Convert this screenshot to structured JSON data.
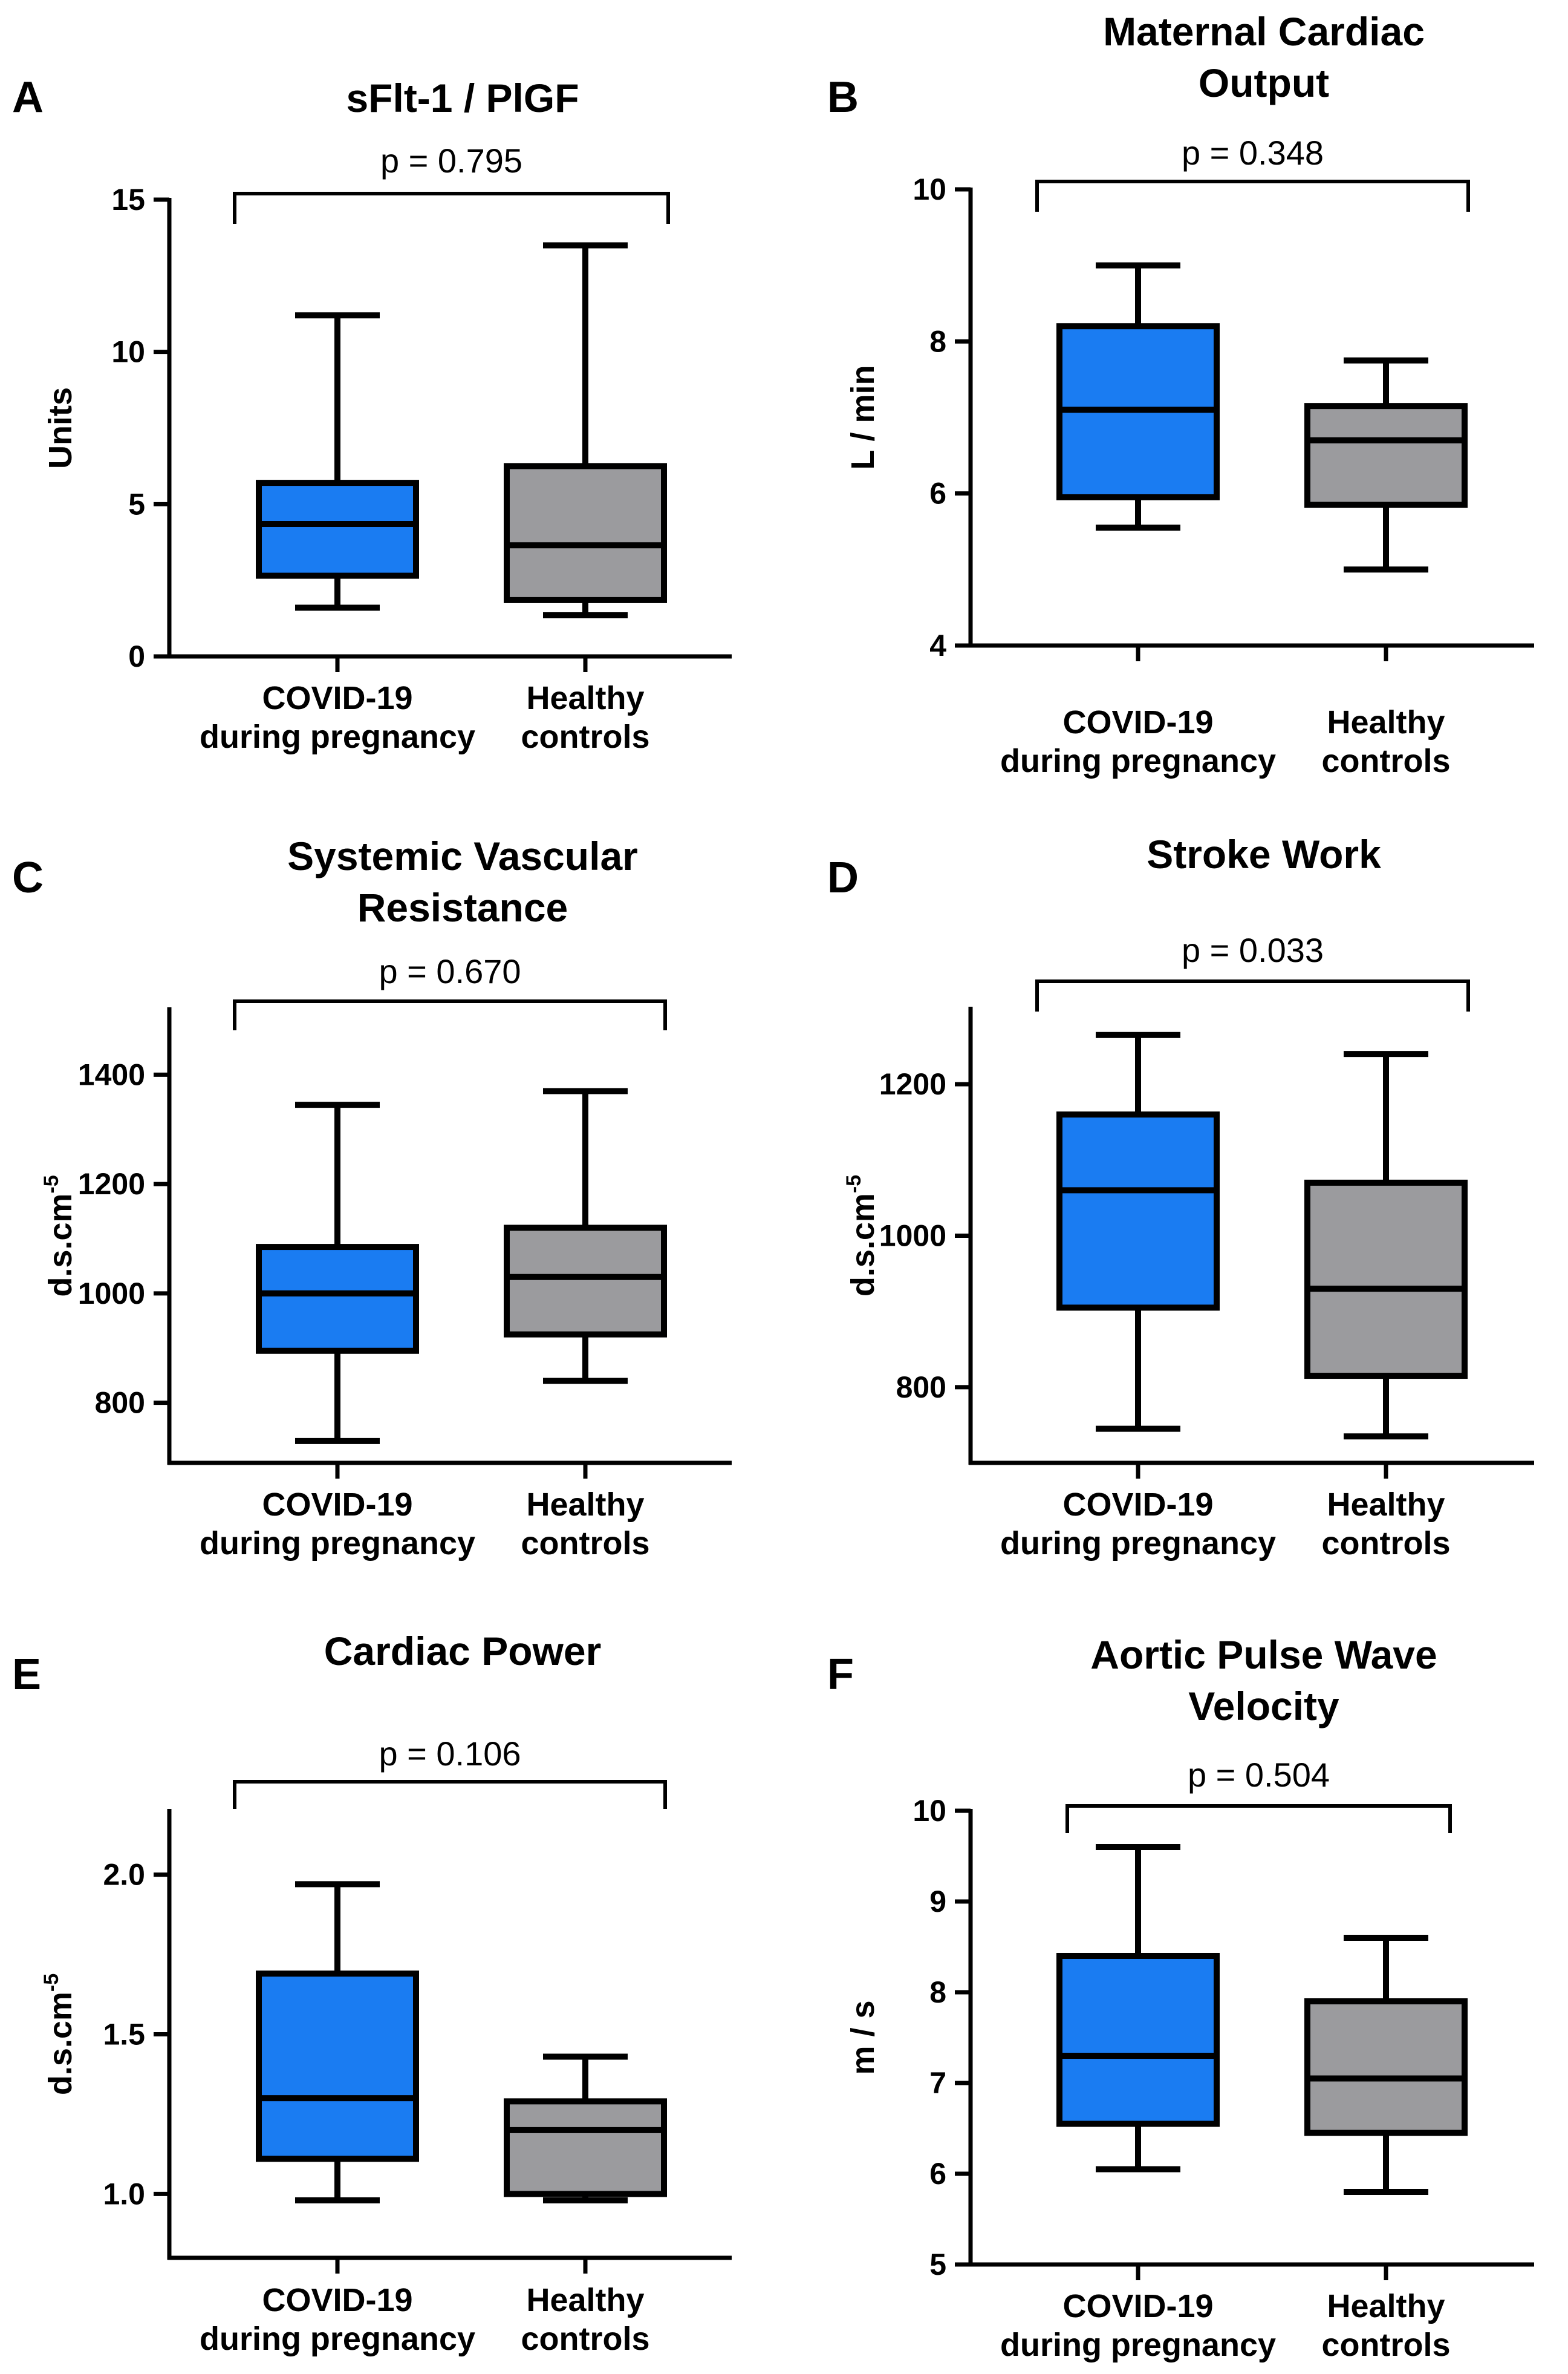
{
  "colors": {
    "covid": "#1a7cf2",
    "healthy": "#9b9b9e",
    "ink": "#000000"
  },
  "chart_data": [
    {
      "type": "box",
      "panel": "A",
      "title": [
        "sFlt-1 / PlGF"
      ],
      "ylabel": [
        "Units"
      ],
      "ylim": [
        0,
        15
      ],
      "yticks": [
        0,
        5,
        10,
        15
      ],
      "ytick_labels": [
        "0",
        "5",
        "10",
        "15"
      ],
      "categories": [
        [
          "COVID-19",
          "during pregnancy"
        ],
        [
          "Healthy",
          "controls"
        ]
      ],
      "p_value": "p = 0.795",
      "series": [
        {
          "name": "COVID-19 during pregnancy",
          "color_key": "covid",
          "min": 1.6,
          "q1": 2.65,
          "median": 4.35,
          "q3": 5.7,
          "max": 11.2
        },
        {
          "name": "Healthy controls",
          "color_key": "healthy",
          "min": 1.35,
          "q1": 1.85,
          "median": 3.65,
          "q3": 6.25,
          "max": 13.5
        }
      ]
    },
    {
      "type": "box",
      "panel": "B",
      "title": [
        "Maternal Cardiac",
        "Output"
      ],
      "ylabel": [
        "L / min"
      ],
      "ylim": [
        4,
        10
      ],
      "yticks": [
        4,
        6,
        8,
        10
      ],
      "ytick_labels": [
        "4",
        "6",
        "8",
        "10"
      ],
      "categories": [
        [
          "COVID-19",
          "during pregnancy"
        ],
        [
          "Healthy",
          "controls"
        ]
      ],
      "p_value": "p = 0.348",
      "series": [
        {
          "name": "COVID-19 during pregnancy",
          "color_key": "covid",
          "min": 5.55,
          "q1": 5.95,
          "median": 7.1,
          "q3": 8.2,
          "max": 9.0
        },
        {
          "name": "Healthy controls",
          "color_key": "healthy",
          "min": 5.0,
          "q1": 5.85,
          "median": 6.7,
          "q3": 7.15,
          "max": 7.75
        }
      ]
    },
    {
      "type": "box",
      "panel": "C",
      "title": [
        "Systemic Vascular",
        "Resistance"
      ],
      "ylabel": [
        "d.s.cm",
        "-5"
      ],
      "ylim": [
        690,
        1520
      ],
      "yticks": [
        800,
        1000,
        1200,
        1400
      ],
      "ytick_labels": [
        "800",
        "1000",
        "1200",
        "1400"
      ],
      "categories": [
        [
          "COVID-19",
          "during pregnancy"
        ],
        [
          "Healthy",
          "controls"
        ]
      ],
      "p_value": "p = 0.670",
      "series": [
        {
          "name": "COVID-19 during pregnancy",
          "color_key": "covid",
          "min": 730,
          "q1": 895,
          "median": 1000,
          "q3": 1085,
          "max": 1345
        },
        {
          "name": "Healthy controls",
          "color_key": "healthy",
          "min": 840,
          "q1": 925,
          "median": 1030,
          "q3": 1120,
          "max": 1370
        }
      ]
    },
    {
      "type": "box",
      "panel": "D",
      "title": [
        "Stroke Work"
      ],
      "ylabel": [
        "d.s.cm",
        "-5"
      ],
      "ylim": [
        700,
        1300
      ],
      "yticks": [
        800,
        1000,
        1200
      ],
      "ytick_labels": [
        "800",
        "1000",
        "1200"
      ],
      "categories": [
        [
          "COVID-19",
          "during pregnancy"
        ],
        [
          "Healthy",
          "controls"
        ]
      ],
      "p_value": "p = 0.033",
      "series": [
        {
          "name": "COVID-19 during pregnancy",
          "color_key": "covid",
          "min": 745,
          "q1": 905,
          "median": 1060,
          "q3": 1160,
          "max": 1265
        },
        {
          "name": "Healthy controls",
          "color_key": "healthy",
          "min": 735,
          "q1": 815,
          "median": 930,
          "q3": 1070,
          "max": 1240
        }
      ]
    },
    {
      "type": "box",
      "panel": "E",
      "title": [
        "Cardiac Power"
      ],
      "ylabel": [
        "d.s.cm",
        "-5"
      ],
      "ylim": [
        0.8,
        2.2
      ],
      "yticks": [
        1.0,
        1.5,
        2.0
      ],
      "ytick_labels": [
        "1.0",
        "1.5",
        "2.0"
      ],
      "categories": [
        [
          "COVID-19",
          "during pregnancy"
        ],
        [
          "Healthy",
          "controls"
        ]
      ],
      "p_value": "p = 0.106",
      "series": [
        {
          "name": "COVID-19 during pregnancy",
          "color_key": "covid",
          "min": 0.98,
          "q1": 1.11,
          "median": 1.3,
          "q3": 1.69,
          "max": 1.97
        },
        {
          "name": "Healthy controls",
          "color_key": "healthy",
          "min": 0.98,
          "q1": 1.0,
          "median": 1.2,
          "q3": 1.29,
          "max": 1.43
        }
      ]
    },
    {
      "type": "box",
      "panel": "F",
      "title": [
        "Aortic Pulse Wave",
        "Velocity"
      ],
      "ylabel": [
        "m / s"
      ],
      "ylim": [
        5,
        10
      ],
      "yticks": [
        5,
        6,
        7,
        8,
        9,
        10
      ],
      "ytick_labels": [
        "5",
        "6",
        "7",
        "8",
        "9",
        "10"
      ],
      "categories": [
        [
          "COVID-19",
          "during pregnancy"
        ],
        [
          "Healthy",
          "controls"
        ]
      ],
      "p_value": "p = 0.504",
      "series": [
        {
          "name": "COVID-19 during pregnancy",
          "color_key": "covid",
          "min": 6.05,
          "q1": 6.55,
          "median": 7.3,
          "q3": 8.4,
          "max": 9.6
        },
        {
          "name": "Healthy controls",
          "color_key": "healthy",
          "min": 5.8,
          "q1": 6.45,
          "median": 7.05,
          "q3": 7.9,
          "max": 8.6
        }
      ]
    }
  ]
}
